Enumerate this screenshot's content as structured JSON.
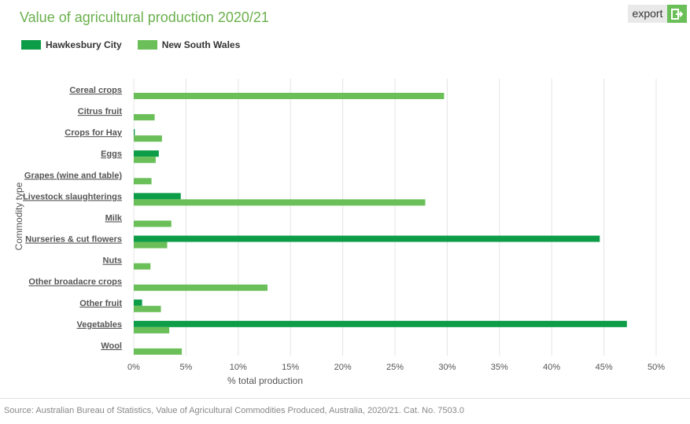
{
  "title": "Value of agricultural production 2020/21",
  "export_label": "export",
  "source": "Source: Australian Bureau of Statistics, Value of Agricultural Commodities Produced, Australia, 2020/21. Cat. No. 7503.0",
  "colors": {
    "hawkesbury": "#0d9c48",
    "nsw": "#6bbf59",
    "title": "#6ab04c"
  },
  "chart_data": {
    "type": "bar",
    "orientation": "horizontal",
    "title": "Value of agricultural production 2020/21",
    "xlabel": "% total production",
    "ylabel": "Commodity type",
    "xlim": [
      0,
      50
    ],
    "xticks": [
      "0%",
      "5%",
      "10%",
      "15%",
      "20%",
      "25%",
      "30%",
      "35%",
      "40%",
      "45%",
      "50%"
    ],
    "grid": true,
    "legend_position": "top-left",
    "categories": [
      "Cereal crops",
      "Citrus fruit",
      "Crops for Hay",
      "Eggs",
      "Grapes (wine and table)",
      "Livestock slaughterings",
      "Milk",
      "Nurseries & cut flowers",
      "Nuts",
      "Other broadacre crops",
      "Other fruit",
      "Vegetables",
      "Wool"
    ],
    "series": [
      {
        "name": "Hawkesbury City",
        "values": [
          0,
          0,
          0.1,
          2.4,
          0,
          4.5,
          0,
          44.6,
          0,
          0,
          0.8,
          47.2,
          0
        ]
      },
      {
        "name": "New South Wales",
        "values": [
          29.7,
          2.0,
          2.7,
          2.1,
          1.7,
          27.9,
          3.6,
          3.2,
          1.6,
          12.8,
          2.6,
          3.4,
          4.6
        ]
      }
    ]
  }
}
